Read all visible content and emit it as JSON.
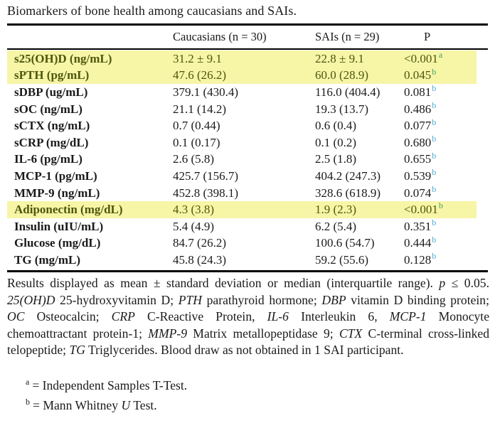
{
  "title": "Biomarkers of bone health among caucasians and SAIs.",
  "colors": {
    "highlight_bg": "#f7f5a6",
    "highlight_text": "#4d570e",
    "sup_color": "#4fa9cf",
    "sup_highlight_color": "#44a268",
    "text_color": "#1a1a1a",
    "rule_color": "#000000"
  },
  "table": {
    "columns": [
      "",
      "Caucasians (n = 30)",
      "SAIs (n = 29)",
      "P"
    ],
    "rows": [
      {
        "label": "s25(OH)D (ng/mL)",
        "caucasians": "31.2 ± 9.1",
        "sais": "22.8 ± 9.1",
        "p": "<0.001",
        "p_sup": "a",
        "highlight": true
      },
      {
        "label": "sPTH (pg/mL)",
        "caucasians": "47.6 (26.2)",
        "sais": "60.0 (28.9)",
        "p": "0.045",
        "p_sup": "b",
        "highlight": true
      },
      {
        "label": "sDBP (ug/mL)",
        "caucasians": "379.1 (430.4)",
        "sais": "116.0 (404.4)",
        "p": "0.081",
        "p_sup": "b",
        "highlight": false
      },
      {
        "label": "sOC (ng/mL)",
        "caucasians": "21.1 (14.2)",
        "sais": "19.3 (13.7)",
        "p": "0.486",
        "p_sup": "b",
        "highlight": false
      },
      {
        "label": "sCTX (ng/mL)",
        "caucasians": "0.7 (0.44)",
        "sais": "0.6 (0.4)",
        "p": "0.077",
        "p_sup": "b",
        "highlight": false
      },
      {
        "label": "sCRP (mg/dL)",
        "caucasians": "0.1 (0.17)",
        "sais": "0.1 (0.2)",
        "p": "0.680",
        "p_sup": "b",
        "highlight": false
      },
      {
        "label": "IL-6 (pg/mL)",
        "caucasians": "2.6 (5.8)",
        "sais": "2.5 (1.8)",
        "p": "0.655",
        "p_sup": "b",
        "highlight": false
      },
      {
        "label": "MCP-1 (pg/mL)",
        "caucasians": "425.7 (156.7)",
        "sais": "404.2 (247.3)",
        "p": "0.539",
        "p_sup": "b",
        "highlight": false
      },
      {
        "label": "MMP-9 (ng/mL)",
        "caucasians": "452.8 (398.1)",
        "sais": "328.6 (618.9)",
        "p": "0.074",
        "p_sup": "b",
        "highlight": false
      },
      {
        "label": "Adiponectin (mg/dL)",
        "caucasians": "4.3 (3.8)",
        "sais": "1.9 (2.3)",
        "p": "<0.001",
        "p_sup": "b",
        "highlight": true
      },
      {
        "label": "Insulin (uIU/mL)",
        "caucasians": "5.4 (4.9)",
        "sais": "6.2 (5.4)",
        "p": "0.351",
        "p_sup": "b",
        "highlight": false
      },
      {
        "label": "Glucose (mg/dL)",
        "caucasians": "84.7 (26.2)",
        "sais": "100.6 (54.7)",
        "p": "0.444",
        "p_sup": "b",
        "highlight": false
      },
      {
        "label": "TG (mg/mL)",
        "caucasians": "45.8 (24.3)",
        "sais": "59.2 (55.6)",
        "p": "0.128",
        "p_sup": "b",
        "highlight": false
      }
    ]
  },
  "footnote": {
    "segments": [
      {
        "text": "Results displayed as mean ± standard deviation or median (interquartile range). "
      },
      {
        "text": "p",
        "italic": true
      },
      {
        "text": " ≤ 0.05. "
      },
      {
        "text": "25(OH)D",
        "italic": true
      },
      {
        "text": " 25-hydroxyvitamin D; "
      },
      {
        "text": "PTH",
        "italic": true
      },
      {
        "text": " parathyroid hormone; "
      },
      {
        "text": "DBP",
        "italic": true
      },
      {
        "text": " vitamin D binding protein; "
      },
      {
        "text": "OC",
        "italic": true
      },
      {
        "text": " Osteocalcin; "
      },
      {
        "text": "CRP",
        "italic": true
      },
      {
        "text": " C-Reactive Protein, "
      },
      {
        "text": "IL-6",
        "italic": true
      },
      {
        "text": " Interleukin 6, "
      },
      {
        "text": "MCP-1",
        "italic": true
      },
      {
        "text": " Monocyte chemoattractant protein-1; "
      },
      {
        "text": "MMP-9",
        "italic": true
      },
      {
        "text": " Matrix metallopeptidase 9; "
      },
      {
        "text": "CTX",
        "italic": true
      },
      {
        "text": " C-terminal cross-linked telopeptide; "
      },
      {
        "text": "TG",
        "italic": true
      },
      {
        "text": " Triglycerides. Blood draw as not obtained in 1 SAI participant."
      }
    ],
    "notes": [
      {
        "sup": "a",
        "segments": [
          {
            "text": "= Independent Samples T-Test."
          }
        ]
      },
      {
        "sup": "b",
        "segments": [
          {
            "text": "= Mann Whitney "
          },
          {
            "text": "U",
            "italic": true
          },
          {
            "text": " Test."
          }
        ]
      }
    ]
  }
}
